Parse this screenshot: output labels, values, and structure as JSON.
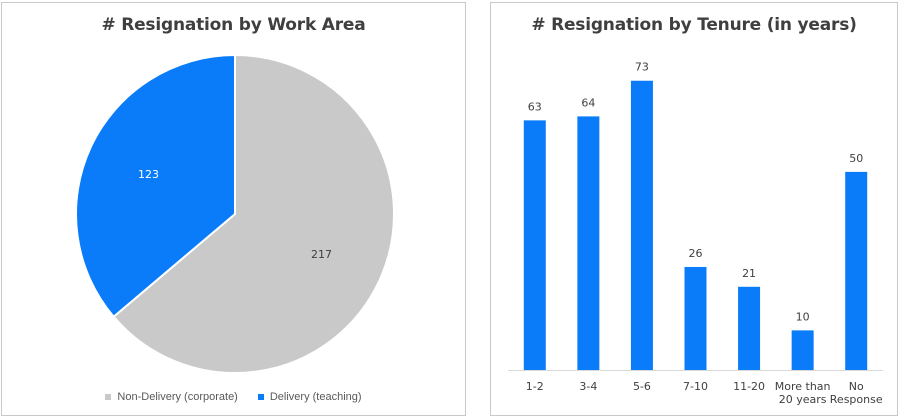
{
  "chart_data": [
    {
      "type": "pie",
      "title": "# Resignation by Work Area",
      "categories": [
        "Non-Delivery (corporate)",
        "Delivery (teaching)"
      ],
      "values": [
        217,
        123
      ],
      "colors": [
        "#c9c9c9",
        "#0a7cfa"
      ],
      "label_colors": [
        "#404040",
        "#ffffff"
      ],
      "legend": "bottom"
    },
    {
      "type": "bar",
      "title": "# Resignation by Tenure (in years)",
      "categories": [
        "1-2",
        "3-4",
        "5-6",
        "7-10",
        "11-20",
        "More than\n20 years",
        "No\nResponse"
      ],
      "values": [
        63,
        64,
        73,
        26,
        21,
        10,
        50
      ],
      "color": "#0a7cfa",
      "ylim": [
        0,
        80
      ],
      "grid": false,
      "xlabel": "",
      "ylabel": ""
    }
  ]
}
